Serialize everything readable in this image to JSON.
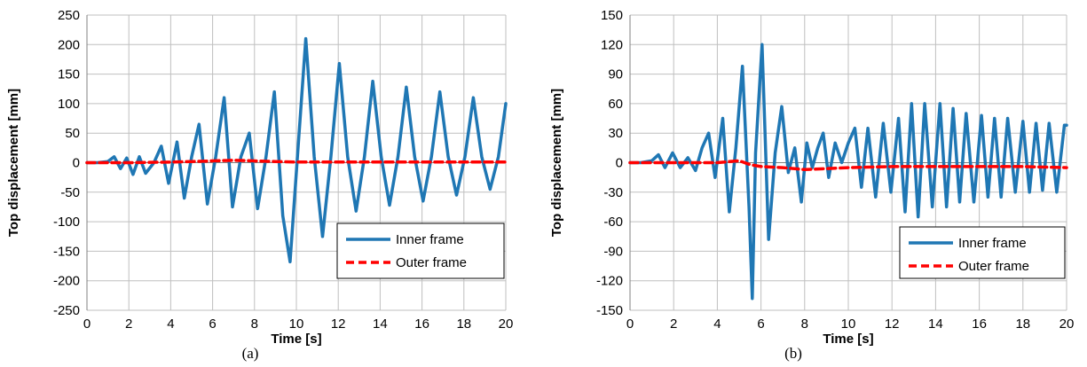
{
  "chart_data": [
    {
      "type": "line",
      "panel_label": "(a)",
      "xlabel": "Time [s]",
      "ylabel": "Top displacement [mm]",
      "xlim": [
        0,
        20
      ],
      "ylim": [
        -250,
        250
      ],
      "xticks": [
        0,
        2,
        4,
        6,
        8,
        10,
        12,
        14,
        16,
        18,
        20
      ],
      "yticks": [
        -250,
        -200,
        -150,
        -100,
        -50,
        0,
        50,
        100,
        150,
        200,
        250
      ],
      "grid": true,
      "legend_position": "bottom-right",
      "series": [
        {
          "name": "Inner frame",
          "color": "#1f77b4",
          "style": "solid",
          "x": [
            0,
            0.5,
            1.0,
            1.3,
            1.6,
            1.9,
            2.2,
            2.5,
            2.8,
            3.2,
            3.55,
            3.9,
            4.3,
            4.65,
            5.0,
            5.35,
            5.75,
            6.15,
            6.55,
            6.95,
            7.35,
            7.75,
            8.15,
            8.55,
            8.95,
            9.35,
            9.7,
            10.05,
            10.45,
            10.85,
            11.25,
            11.65,
            12.05,
            12.45,
            12.85,
            13.25,
            13.65,
            14.05,
            14.45,
            14.85,
            15.25,
            15.65,
            16.05,
            16.45,
            16.85,
            17.25,
            17.65,
            18.05,
            18.45,
            18.85,
            19.25,
            19.65,
            20.0
          ],
          "y": [
            0,
            0,
            2,
            10,
            -10,
            8,
            -20,
            10,
            -18,
            0,
            28,
            -35,
            35,
            -60,
            10,
            65,
            -70,
            10,
            110,
            -75,
            10,
            50,
            -78,
            10,
            120,
            -90,
            -168,
            10,
            210,
            10,
            -125,
            10,
            168,
            10,
            -82,
            10,
            138,
            10,
            -72,
            10,
            128,
            10,
            -65,
            10,
            120,
            10,
            -55,
            10,
            110,
            10,
            -45,
            10,
            100
          ]
        },
        {
          "name": "Outer frame",
          "color": "#ff0000",
          "style": "dashed",
          "x": [
            0,
            2,
            4,
            5,
            6,
            7,
            8,
            9,
            10,
            12,
            14,
            16,
            18,
            20
          ],
          "y": [
            0,
            0,
            1,
            2,
            3,
            4,
            3,
            2,
            1,
            1,
            1,
            1,
            1,
            1
          ]
        }
      ]
    },
    {
      "type": "line",
      "panel_label": "(b)",
      "xlabel": "Time [s]",
      "ylabel": "Top displacement [mm]",
      "xlim": [
        0,
        20
      ],
      "ylim": [
        -150,
        150
      ],
      "xticks": [
        0,
        2,
        4,
        6,
        8,
        10,
        12,
        14,
        16,
        18,
        20
      ],
      "yticks": [
        -150,
        -120,
        -90,
        -60,
        -30,
        0,
        30,
        60,
        90,
        120,
        150
      ],
      "grid": true,
      "legend_position": "bottom-right",
      "series": [
        {
          "name": "Inner frame",
          "color": "#1f77b4",
          "style": "solid",
          "x": [
            0,
            0.5,
            1.0,
            1.3,
            1.6,
            1.95,
            2.3,
            2.65,
            3.0,
            3.3,
            3.6,
            3.9,
            4.25,
            4.55,
            4.85,
            5.15,
            5.45,
            5.6,
            5.75,
            6.05,
            6.35,
            6.65,
            6.95,
            7.25,
            7.55,
            7.85,
            8.1,
            8.35,
            8.6,
            8.85,
            9.1,
            9.4,
            9.7,
            10.0,
            10.3,
            10.6,
            10.9,
            11.25,
            11.6,
            11.95,
            12.3,
            12.6,
            12.9,
            13.2,
            13.5,
            13.85,
            14.2,
            14.5,
            14.8,
            15.1,
            15.4,
            15.75,
            16.1,
            16.4,
            16.7,
            17.0,
            17.3,
            17.65,
            18.0,
            18.3,
            18.6,
            18.9,
            19.2,
            19.55,
            19.9,
            20.0
          ],
          "y": [
            0,
            0,
            2,
            8,
            -5,
            10,
            -5,
            5,
            -8,
            15,
            30,
            -15,
            45,
            -50,
            15,
            98,
            -45,
            -138,
            10,
            120,
            -78,
            10,
            57,
            -10,
            15,
            -40,
            20,
            -5,
            15,
            30,
            -15,
            20,
            0,
            20,
            35,
            -25,
            35,
            -35,
            40,
            -30,
            45,
            -50,
            60,
            -55,
            60,
            -45,
            60,
            -45,
            55,
            -40,
            50,
            -40,
            48,
            -35,
            45,
            -35,
            45,
            -30,
            42,
            -30,
            40,
            -28,
            40,
            -30,
            38,
            38
          ]
        },
        {
          "name": "Outer frame",
          "color": "#ff0000",
          "style": "dashed",
          "x": [
            0,
            2,
            4,
            5,
            5.5,
            6,
            7,
            8,
            9,
            10,
            12,
            14,
            16,
            18,
            20
          ],
          "y": [
            0,
            0,
            0,
            2,
            -2,
            -4,
            -5,
            -7,
            -6,
            -5,
            -4,
            -4,
            -4,
            -4,
            -5
          ]
        }
      ]
    }
  ]
}
